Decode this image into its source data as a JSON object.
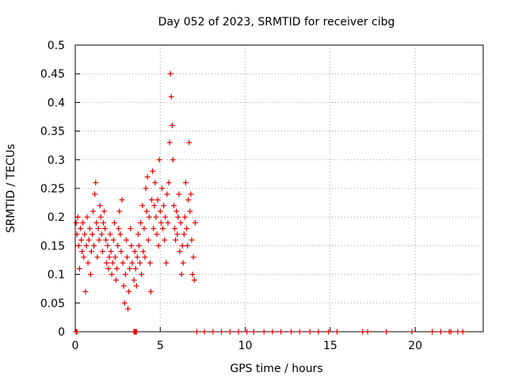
{
  "chart_data": {
    "type": "scatter",
    "title": "Day 052 of 2023, SRMTID for receiver cibg",
    "xlabel": "GPS time / hours",
    "ylabel": "SRMTID / TECUs",
    "xlim": [
      0,
      24
    ],
    "ylim": [
      0,
      0.5
    ],
    "x_ticks": [
      0,
      5,
      10,
      15,
      20
    ],
    "y_ticks": [
      0,
      0.05,
      0.1,
      0.15,
      0.2,
      0.25,
      0.3,
      0.35,
      0.4,
      0.45,
      0.5
    ],
    "x_tick_labels": [
      "0",
      "5",
      "10",
      "15",
      "20"
    ],
    "y_tick_labels": [
      "0",
      "0.05",
      "0.1",
      "0.15",
      "0.2",
      "0.25",
      "0.3",
      "0.35",
      "0.4",
      "0.45",
      "0.5"
    ],
    "grid": true,
    "marker": "+",
    "marker_color": "#e00000",
    "series": [
      {
        "name": "SRMTID",
        "points": [
          [
            0.05,
            0.19
          ],
          [
            0.1,
            0.17
          ],
          [
            0.15,
            0.2
          ],
          [
            0.2,
            0.15
          ],
          [
            0.25,
            0.11
          ],
          [
            0.3,
            0.18
          ],
          [
            0.35,
            0.16
          ],
          [
            0.4,
            0.14
          ],
          [
            0.45,
            0.19
          ],
          [
            0.5,
            0.13
          ],
          [
            0.55,
            0.17
          ],
          [
            0.6,
            0.07
          ],
          [
            0.65,
            0.15
          ],
          [
            0.7,
            0.2
          ],
          [
            0.75,
            0.12
          ],
          [
            0.8,
            0.16
          ],
          [
            0.85,
            0.18
          ],
          [
            0.9,
            0.1
          ],
          [
            0.95,
            0.14
          ],
          [
            1.0,
            0.17
          ],
          [
            1.05,
            0.21
          ],
          [
            1.1,
            0.15
          ],
          [
            1.15,
            0.24
          ],
          [
            1.2,
            0.26
          ],
          [
            1.25,
            0.19
          ],
          [
            1.3,
            0.13
          ],
          [
            1.35,
            0.18
          ],
          [
            1.4,
            0.16
          ],
          [
            1.45,
            0.22
          ],
          [
            1.5,
            0.2
          ],
          [
            1.55,
            0.17
          ],
          [
            1.6,
            0.14
          ],
          [
            1.65,
            0.19
          ],
          [
            1.7,
            0.21
          ],
          [
            1.75,
            0.18
          ],
          [
            1.8,
            0.16
          ],
          [
            1.85,
            0.12
          ],
          [
            1.9,
            0.15
          ],
          [
            1.95,
            0.11
          ],
          [
            2.0,
            0.13
          ],
          [
            2.05,
            0.17
          ],
          [
            2.1,
            0.14
          ],
          [
            2.15,
            0.1
          ],
          [
            2.2,
            0.12
          ],
          [
            2.25,
            0.16
          ],
          [
            2.3,
            0.19
          ],
          [
            2.35,
            0.13
          ],
          [
            2.4,
            0.09
          ],
          [
            2.45,
            0.11
          ],
          [
            2.5,
            0.15
          ],
          [
            2.55,
            0.18
          ],
          [
            2.6,
            0.21
          ],
          [
            2.65,
            0.17
          ],
          [
            2.7,
            0.14
          ],
          [
            2.75,
            0.23
          ],
          [
            2.8,
            0.12
          ],
          [
            2.85,
            0.08
          ],
          [
            2.9,
            0.05
          ],
          [
            2.95,
            0.1
          ],
          [
            3.0,
            0.16
          ],
          [
            3.05,
            0.13
          ],
          [
            3.1,
            0.04
          ],
          [
            3.15,
            0.07
          ],
          [
            3.2,
            0.11
          ],
          [
            3.25,
            0.18
          ],
          [
            3.3,
            0.15
          ],
          [
            3.35,
            0.12
          ],
          [
            3.45,
            0.09
          ],
          [
            3.5,
            0.14
          ],
          [
            3.55,
            0.11
          ],
          [
            3.6,
            0.08
          ],
          [
            3.65,
            0.13
          ],
          [
            3.7,
            0.17
          ],
          [
            3.75,
            0.15
          ],
          [
            3.8,
            0.12
          ],
          [
            3.85,
            0.19
          ],
          [
            3.9,
            0.1
          ],
          [
            3.95,
            0.22
          ],
          [
            4.0,
            0.14
          ],
          [
            4.05,
            0.18
          ],
          [
            4.1,
            0.13
          ],
          [
            4.15,
            0.25
          ],
          [
            4.2,
            0.21
          ],
          [
            4.25,
            0.27
          ],
          [
            4.3,
            0.16
          ],
          [
            4.35,
            0.2
          ],
          [
            4.4,
            0.12
          ],
          [
            4.45,
            0.07
          ],
          [
            4.5,
            0.23
          ],
          [
            4.55,
            0.28
          ],
          [
            4.6,
            0.18
          ],
          [
            4.65,
            0.22
          ],
          [
            4.7,
            0.26
          ],
          [
            4.75,
            0.2
          ],
          [
            4.8,
            0.17
          ],
          [
            4.85,
            0.23
          ],
          [
            4.9,
            0.15
          ],
          [
            4.95,
            0.3
          ],
          [
            5.0,
            0.21
          ],
          [
            5.05,
            0.19
          ],
          [
            5.1,
            0.25
          ],
          [
            5.15,
            0.18
          ],
          [
            5.2,
            0.22
          ],
          [
            5.25,
            0.16
          ],
          [
            5.3,
            0.2
          ],
          [
            5.35,
            0.12
          ],
          [
            5.4,
            0.24
          ],
          [
            5.45,
            0.19
          ],
          [
            5.5,
            0.26
          ],
          [
            5.55,
            0.33
          ],
          [
            5.6,
            0.45
          ],
          [
            5.65,
            0.41
          ],
          [
            5.7,
            0.36
          ],
          [
            5.75,
            0.3
          ],
          [
            5.8,
            0.22
          ],
          [
            5.85,
            0.18
          ],
          [
            5.9,
            0.16
          ],
          [
            5.95,
            0.21
          ],
          [
            6.0,
            0.17
          ],
          [
            6.05,
            0.2
          ],
          [
            6.1,
            0.24
          ],
          [
            6.15,
            0.14
          ],
          [
            6.2,
            0.19
          ],
          [
            6.25,
            0.1
          ],
          [
            6.3,
            0.15
          ],
          [
            6.35,
            0.12
          ],
          [
            6.4,
            0.17
          ],
          [
            6.45,
            0.2
          ],
          [
            6.5,
            0.26
          ],
          [
            6.55,
            0.18
          ],
          [
            6.6,
            0.15
          ],
          [
            6.65,
            0.23
          ],
          [
            6.7,
            0.33
          ],
          [
            6.75,
            0.21
          ],
          [
            6.8,
            0.24
          ],
          [
            6.85,
            0.16
          ],
          [
            6.9,
            0.1
          ],
          [
            6.95,
            0.13
          ],
          [
            7.0,
            0.09
          ],
          [
            7.05,
            0.19
          ]
        ]
      }
    ],
    "zero_points_x": [
      0.05,
      0.1,
      3.45,
      3.5,
      3.55,
      3.6,
      7.15,
      7.6,
      8.1,
      8.6,
      9.1,
      9.6,
      10.1,
      10.5,
      11.1,
      11.6,
      12.1,
      12.7,
      13.2,
      13.8,
      14.3,
      14.9,
      15.4,
      16.9,
      17.2,
      18.3,
      19.8,
      21.0,
      21.5,
      22.0,
      22.1,
      22.5,
      22.8
    ]
  }
}
